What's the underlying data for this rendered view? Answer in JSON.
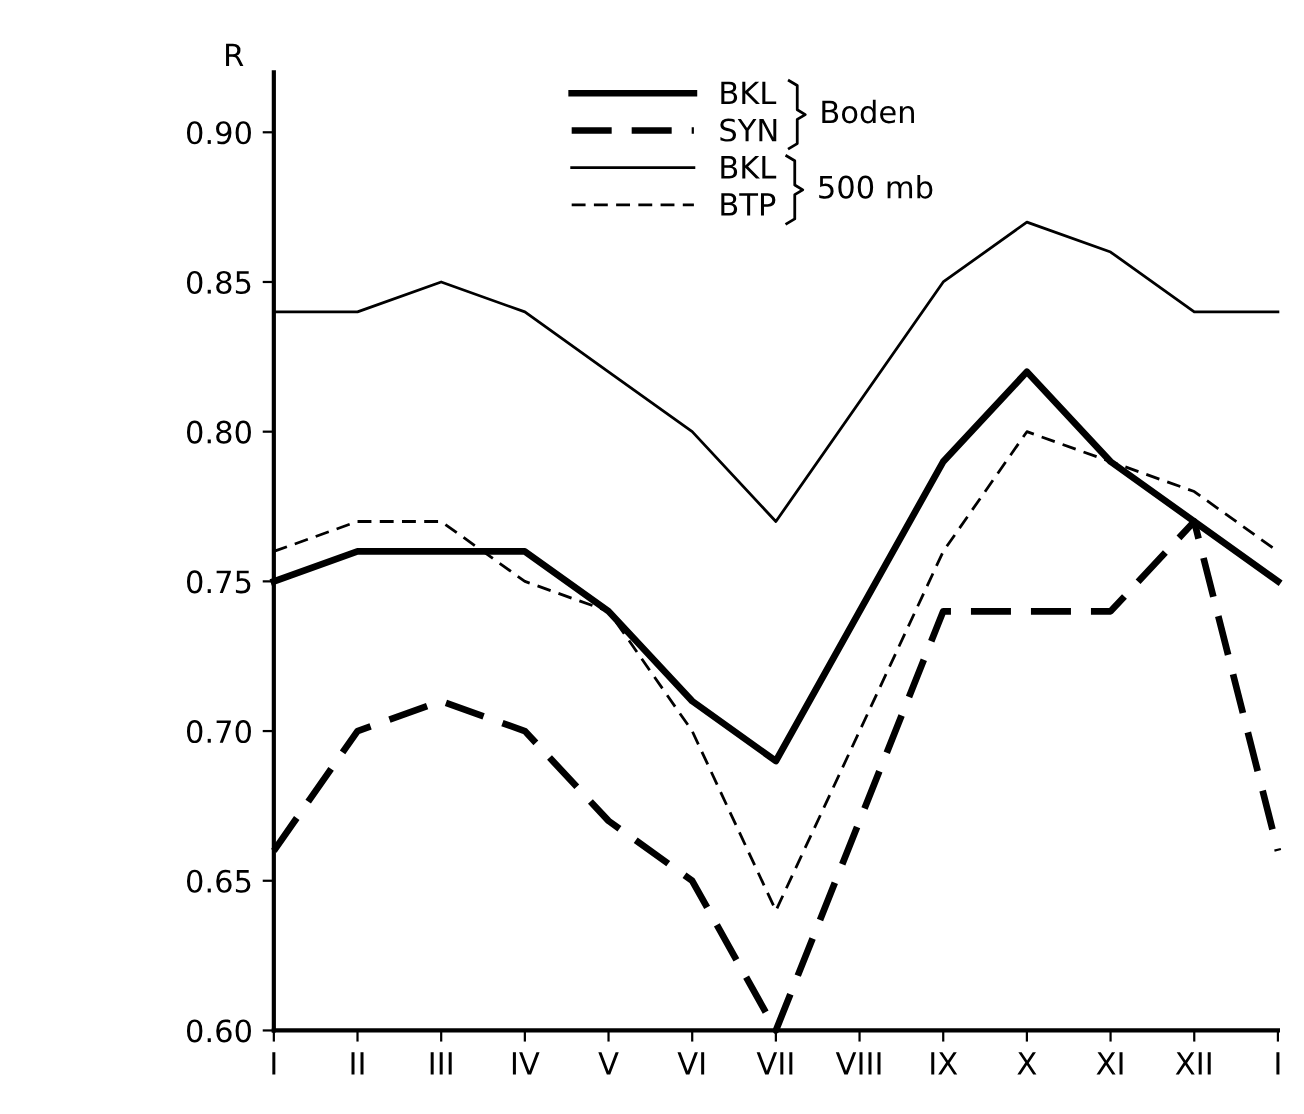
{
  "chart_data": {
    "type": "line",
    "ylabel": "R",
    "categories": [
      "I",
      "II",
      "III",
      "IV",
      "V",
      "VI",
      "VII",
      "VIII",
      "IX",
      "X",
      "XI",
      "XII",
      "I"
    ],
    "series": [
      {
        "name": "BKL",
        "color": "#000000",
        "line_style": "solid",
        "values": [
          0.75,
          0.76,
          0.76,
          0.76,
          0.74,
          0.71,
          0.69,
          null,
          0.79,
          0.82,
          0.79,
          0.77,
          0.75
        ]
      },
      {
        "name": "SYN",
        "color": "#000000",
        "line_style": "dashed",
        "values": [
          0.66,
          0.7,
          0.71,
          0.7,
          0.67,
          0.65,
          0.6,
          null,
          0.74,
          0.74,
          0.74,
          0.77,
          0.66
        ]
      },
      {
        "name": "BKL",
        "color": "#000000",
        "line_style": "solid",
        "values": [
          0.84,
          0.84,
          0.85,
          0.84,
          0.82,
          0.8,
          0.77,
          null,
          0.85,
          0.87,
          0.86,
          0.84,
          0.84
        ]
      },
      {
        "name": "BTP",
        "color": "#000000",
        "line_style": "dashed",
        "values": [
          0.76,
          0.77,
          0.77,
          0.75,
          0.74,
          0.7,
          0.64,
          null,
          0.76,
          0.8,
          0.79,
          0.78,
          0.76
        ]
      }
    ],
    "annotations": [
      "Boden",
      "500 mb"
    ],
    "ylim": [
      0.6,
      0.92
    ],
    "yticks": [
      {
        "value": 0.6,
        "label": "0.60"
      },
      {
        "value": 0.65,
        "label": "0.65"
      },
      {
        "value": 0.7,
        "label": "0.70"
      },
      {
        "value": 0.75,
        "label": "0.75"
      },
      {
        "value": 0.8,
        "label": "0.80"
      },
      {
        "value": 0.85,
        "label": "0.85"
      },
      {
        "value": 0.9,
        "label": "0.90"
      }
    ],
    "grid": false,
    "legend": "top",
    "marker": "none"
  }
}
